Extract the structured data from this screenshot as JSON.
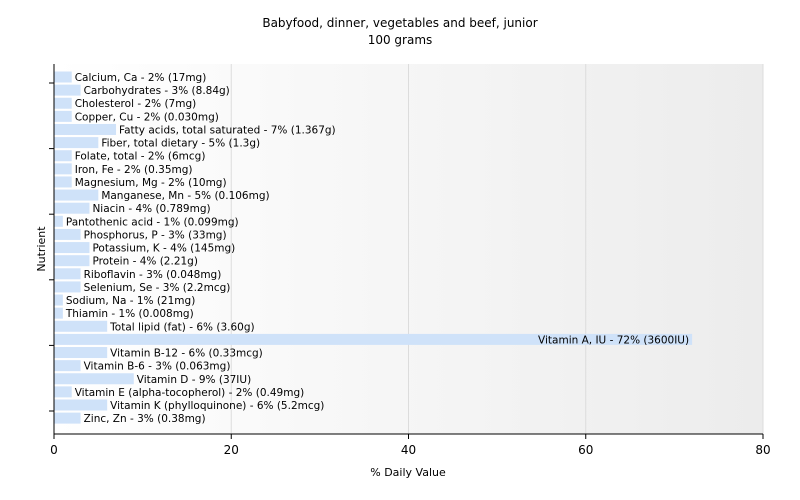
{
  "chart_data": {
    "type": "bar",
    "orientation": "horizontal",
    "title": "Babyfood, dinner, vegetables and beef, junior",
    "subtitle": "100 grams",
    "xlabel": "% Daily Value",
    "ylabel": "Nutrient",
    "xlim": [
      0,
      80
    ],
    "xticks": [
      "0",
      "20",
      "40",
      "60",
      "80"
    ],
    "grid": true,
    "bar_color": "#cfe2f9",
    "categories": [
      "Calcium, Ca",
      "Carbohydrates",
      "Cholesterol",
      "Copper, Cu",
      "Fatty acids, total saturated",
      "Fiber, total dietary",
      "Folate, total",
      "Iron, Fe",
      "Magnesium, Mg",
      "Manganese, Mn",
      "Niacin",
      "Pantothenic acid",
      "Phosphorus, P",
      "Potassium, K",
      "Protein",
      "Riboflavin",
      "Selenium, Se",
      "Sodium, Na",
      "Thiamin",
      "Total lipid (fat)",
      "Vitamin A, IU",
      "Vitamin B-12",
      "Vitamin B-6",
      "Vitamin D",
      "Vitamin E (alpha-tocopherol)",
      "Vitamin K (phylloquinone)",
      "Zinc, Zn"
    ],
    "values": [
      2,
      3,
      2,
      2,
      7,
      5,
      2,
      2,
      2,
      5,
      4,
      1,
      3,
      4,
      4,
      3,
      3,
      1,
      1,
      6,
      72,
      6,
      3,
      9,
      2,
      6,
      3
    ],
    "labels": [
      "Calcium, Ca - 2% (17mg)",
      "Carbohydrates - 3% (8.84g)",
      "Cholesterol - 2% (7mg)",
      "Copper, Cu - 2% (0.030mg)",
      "Fatty acids, total saturated - 7% (1.367g)",
      "Fiber, total dietary - 5% (1.3g)",
      "Folate, total - 2% (6mcg)",
      "Iron, Fe - 2% (0.35mg)",
      "Magnesium, Mg - 2% (10mg)",
      "Manganese, Mn - 5% (0.106mg)",
      "Niacin - 4% (0.789mg)",
      "Pantothenic acid - 1% (0.099mg)",
      "Phosphorus, P - 3% (33mg)",
      "Potassium, K - 4% (145mg)",
      "Protein - 4% (2.21g)",
      "Riboflavin - 3% (0.048mg)",
      "Selenium, Se - 3% (2.2mcg)",
      "Sodium, Na - 1% (21mg)",
      "Thiamin - 1% (0.008mg)",
      "Total lipid (fat) - 6% (3.60g)",
      "Vitamin A, IU - 72% (3600IU)",
      "Vitamin B-12 - 6% (0.33mcg)",
      "Vitamin B-6 - 3% (0.063mg)",
      "Vitamin D - 9% (37IU)",
      "Vitamin E (alpha-tocopherol) - 2% (0.49mg)",
      "Vitamin K (phylloquinone) - 6% (5.2mcg)",
      "Zinc, Zn - 3% (0.38mg)"
    ]
  }
}
